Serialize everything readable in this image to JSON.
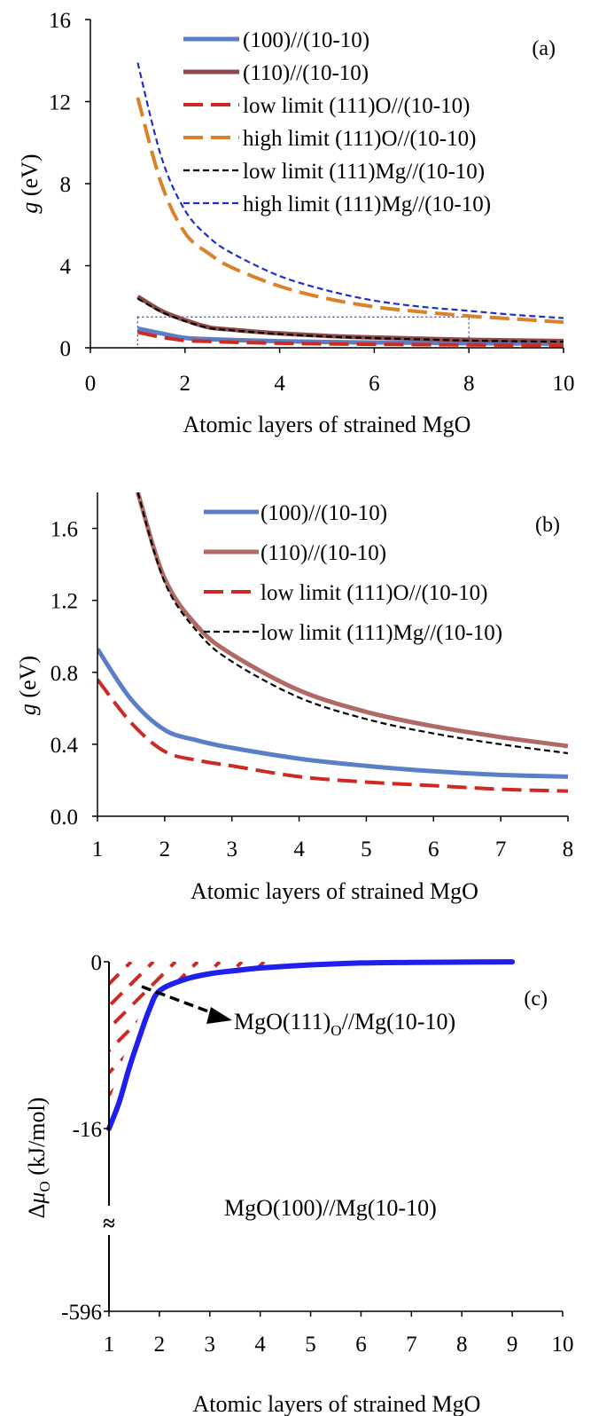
{
  "chart_data": [
    {
      "type": "line",
      "panel_label": "(a)",
      "xlabel": "Atomic layers of strained MgO",
      "ylabel_var": "g",
      "ylabel_unit": " (eV)",
      "xlim": [
        0,
        10
      ],
      "ylim": [
        0,
        16
      ],
      "xticks": [
        "0",
        "2",
        "4",
        "6",
        "8",
        "10"
      ],
      "yticks": [
        "0",
        "4",
        "8",
        "12",
        "16"
      ],
      "grid": false,
      "legend_position": "top-right",
      "zoom_box": {
        "x": [
          1,
          8
        ],
        "y": [
          0,
          1.5
        ]
      },
      "series": [
        {
          "name": "(100)//(10-10)",
          "color": "#5b7fc4",
          "dash": "solid",
          "x": [
            1,
            1.5,
            2,
            2.5,
            3,
            4,
            5,
            6,
            7,
            8,
            9,
            10
          ],
          "y": [
            0.94,
            0.7,
            0.48,
            0.42,
            0.38,
            0.32,
            0.28,
            0.26,
            0.24,
            0.22,
            0.21,
            0.2
          ]
        },
        {
          "name": "(110)//(10-10)",
          "color": "#8e4a49",
          "dash": "solid",
          "x": [
            1,
            1.5,
            2,
            2.5,
            3,
            4,
            5,
            6,
            7,
            8,
            9,
            10
          ],
          "y": [
            2.5,
            1.8,
            1.35,
            1.0,
            0.88,
            0.7,
            0.58,
            0.5,
            0.44,
            0.39,
            0.36,
            0.33
          ]
        },
        {
          "name": "low limit (111)O//(10-10)",
          "color": "#cc2a22",
          "dash": "longdash",
          "x": [
            1,
            1.5,
            2,
            2.5,
            3,
            4,
            5,
            6,
            7,
            8,
            9,
            10
          ],
          "y": [
            0.76,
            0.52,
            0.36,
            0.31,
            0.27,
            0.22,
            0.19,
            0.17,
            0.15,
            0.14,
            0.13,
            0.12
          ]
        },
        {
          "name": "high limit (111)O//(10-10)",
          "color": "#d9822b",
          "dash": "longdash",
          "x": [
            1,
            1.5,
            2,
            2.5,
            3,
            4,
            5,
            6,
            7,
            8,
            9,
            10
          ],
          "y": [
            12.2,
            8.0,
            5.6,
            4.6,
            3.9,
            3.0,
            2.4,
            2.0,
            1.75,
            1.55,
            1.4,
            1.25
          ]
        },
        {
          "name": "low limit (111)Mg//(10-10)",
          "color": "#000000",
          "dash": "shortdash",
          "x": [
            1,
            1.5,
            2,
            2.5,
            3,
            4,
            5,
            6,
            7,
            8,
            9,
            10
          ],
          "y": [
            2.4,
            1.75,
            1.3,
            0.97,
            0.85,
            0.67,
            0.55,
            0.47,
            0.41,
            0.35,
            0.32,
            0.3
          ]
        },
        {
          "name": "high limit (111)Mg//(10-10)",
          "color": "#1f2fcc",
          "dash": "shortdash",
          "x": [
            1,
            1.5,
            2,
            2.5,
            3,
            4,
            5,
            6,
            7,
            8,
            9,
            10
          ],
          "y": [
            13.9,
            9.3,
            6.7,
            5.4,
            4.6,
            3.5,
            2.8,
            2.3,
            2.0,
            1.8,
            1.6,
            1.45
          ]
        }
      ]
    },
    {
      "type": "line",
      "panel_label": "(b)",
      "xlabel": "Atomic layers of strained MgO",
      "ylabel_var": "g",
      "ylabel_unit": " (eV)",
      "xlim": [
        1,
        8
      ],
      "ylim": [
        0,
        1.8
      ],
      "xticks": [
        "1",
        "2",
        "3",
        "4",
        "5",
        "6",
        "7",
        "8"
      ],
      "yticks": [
        "0.0",
        "0.4",
        "0.8",
        "1.2",
        "1.6"
      ],
      "grid": false,
      "legend_position": "top-right",
      "series": [
        {
          "name": "(100)//(10-10)",
          "color": "#5b7fc4",
          "dash": "solid",
          "x": [
            1,
            1.5,
            2,
            2.5,
            3,
            4,
            5,
            6,
            7,
            8
          ],
          "y": [
            0.93,
            0.65,
            0.48,
            0.42,
            0.38,
            0.32,
            0.28,
            0.25,
            0.23,
            0.22
          ]
        },
        {
          "name": "(110)//(10-10)",
          "color": "#b06a65",
          "dash": "solid",
          "x": [
            1.6,
            2,
            2.5,
            3,
            4,
            5,
            6,
            7,
            8
          ],
          "y": [
            1.8,
            1.32,
            1.05,
            0.9,
            0.7,
            0.58,
            0.5,
            0.44,
            0.39
          ]
        },
        {
          "name": "low limit (111)O//(10-10)",
          "color": "#cc2a22",
          "dash": "longdash",
          "x": [
            1,
            1.5,
            2,
            2.5,
            3,
            4,
            5,
            6,
            7,
            8
          ],
          "y": [
            0.76,
            0.52,
            0.36,
            0.31,
            0.28,
            0.22,
            0.19,
            0.17,
            0.15,
            0.14
          ]
        },
        {
          "name": "low limit (111)Mg//(10-10)",
          "color": "#000000",
          "dash": "shortdash",
          "x": [
            1.6,
            2,
            2.5,
            3,
            4,
            5,
            6,
            7,
            8
          ],
          "y": [
            1.8,
            1.3,
            1.02,
            0.86,
            0.66,
            0.54,
            0.46,
            0.4,
            0.35
          ]
        }
      ]
    },
    {
      "type": "line",
      "panel_label": "(c)",
      "xlabel": "Atomic layers of strained MgO",
      "ylabel": "ΔμO (kJ/mol)",
      "ylabel_delta": "Δ",
      "ylabel_mu": "μ",
      "ylabel_sub": "O",
      "ylabel_unit": " (kJ/mol)",
      "xlim": [
        1,
        10
      ],
      "ylim_upper": [
        -16,
        0
      ],
      "ylim_lower": [
        -596,
        -596
      ],
      "axis_break": "≈",
      "xticks": [
        "1",
        "2",
        "3",
        "4",
        "5",
        "6",
        "7",
        "8",
        "9",
        "10"
      ],
      "yticks": [
        "0",
        "-16",
        "-596"
      ],
      "grid": false,
      "annotations": [
        {
          "text_main": "MgO(111)",
          "text_sub": "O",
          "text_tail": "//Mg(10-10)"
        },
        {
          "text": "MgO(100)//Mg(10-10)"
        }
      ],
      "series": [
        {
          "name": "",
          "color": "#2020ee",
          "x": [
            1,
            1.2,
            1.4,
            1.6,
            1.8,
            2,
            2.5,
            3,
            3.5,
            4,
            5,
            6,
            7,
            8,
            9
          ],
          "y": [
            -16,
            -13.5,
            -10.2,
            -7.3,
            -4.6,
            -2.8,
            -1.7,
            -1.15,
            -0.85,
            -0.6,
            -0.3,
            -0.12,
            -0.06,
            -0.03,
            -0.01
          ]
        }
      ],
      "hatched_region": {
        "color": "#cc2a22",
        "boundary_x": [
          1,
          1.3,
          1.6,
          2,
          2.5,
          3,
          3.5,
          4,
          4.5
        ],
        "boundary_y": [
          -13.5,
          -9,
          -5.2,
          -2.8,
          -1.7,
          -1.15,
          -0.85,
          -0.55,
          0
        ]
      }
    }
  ]
}
